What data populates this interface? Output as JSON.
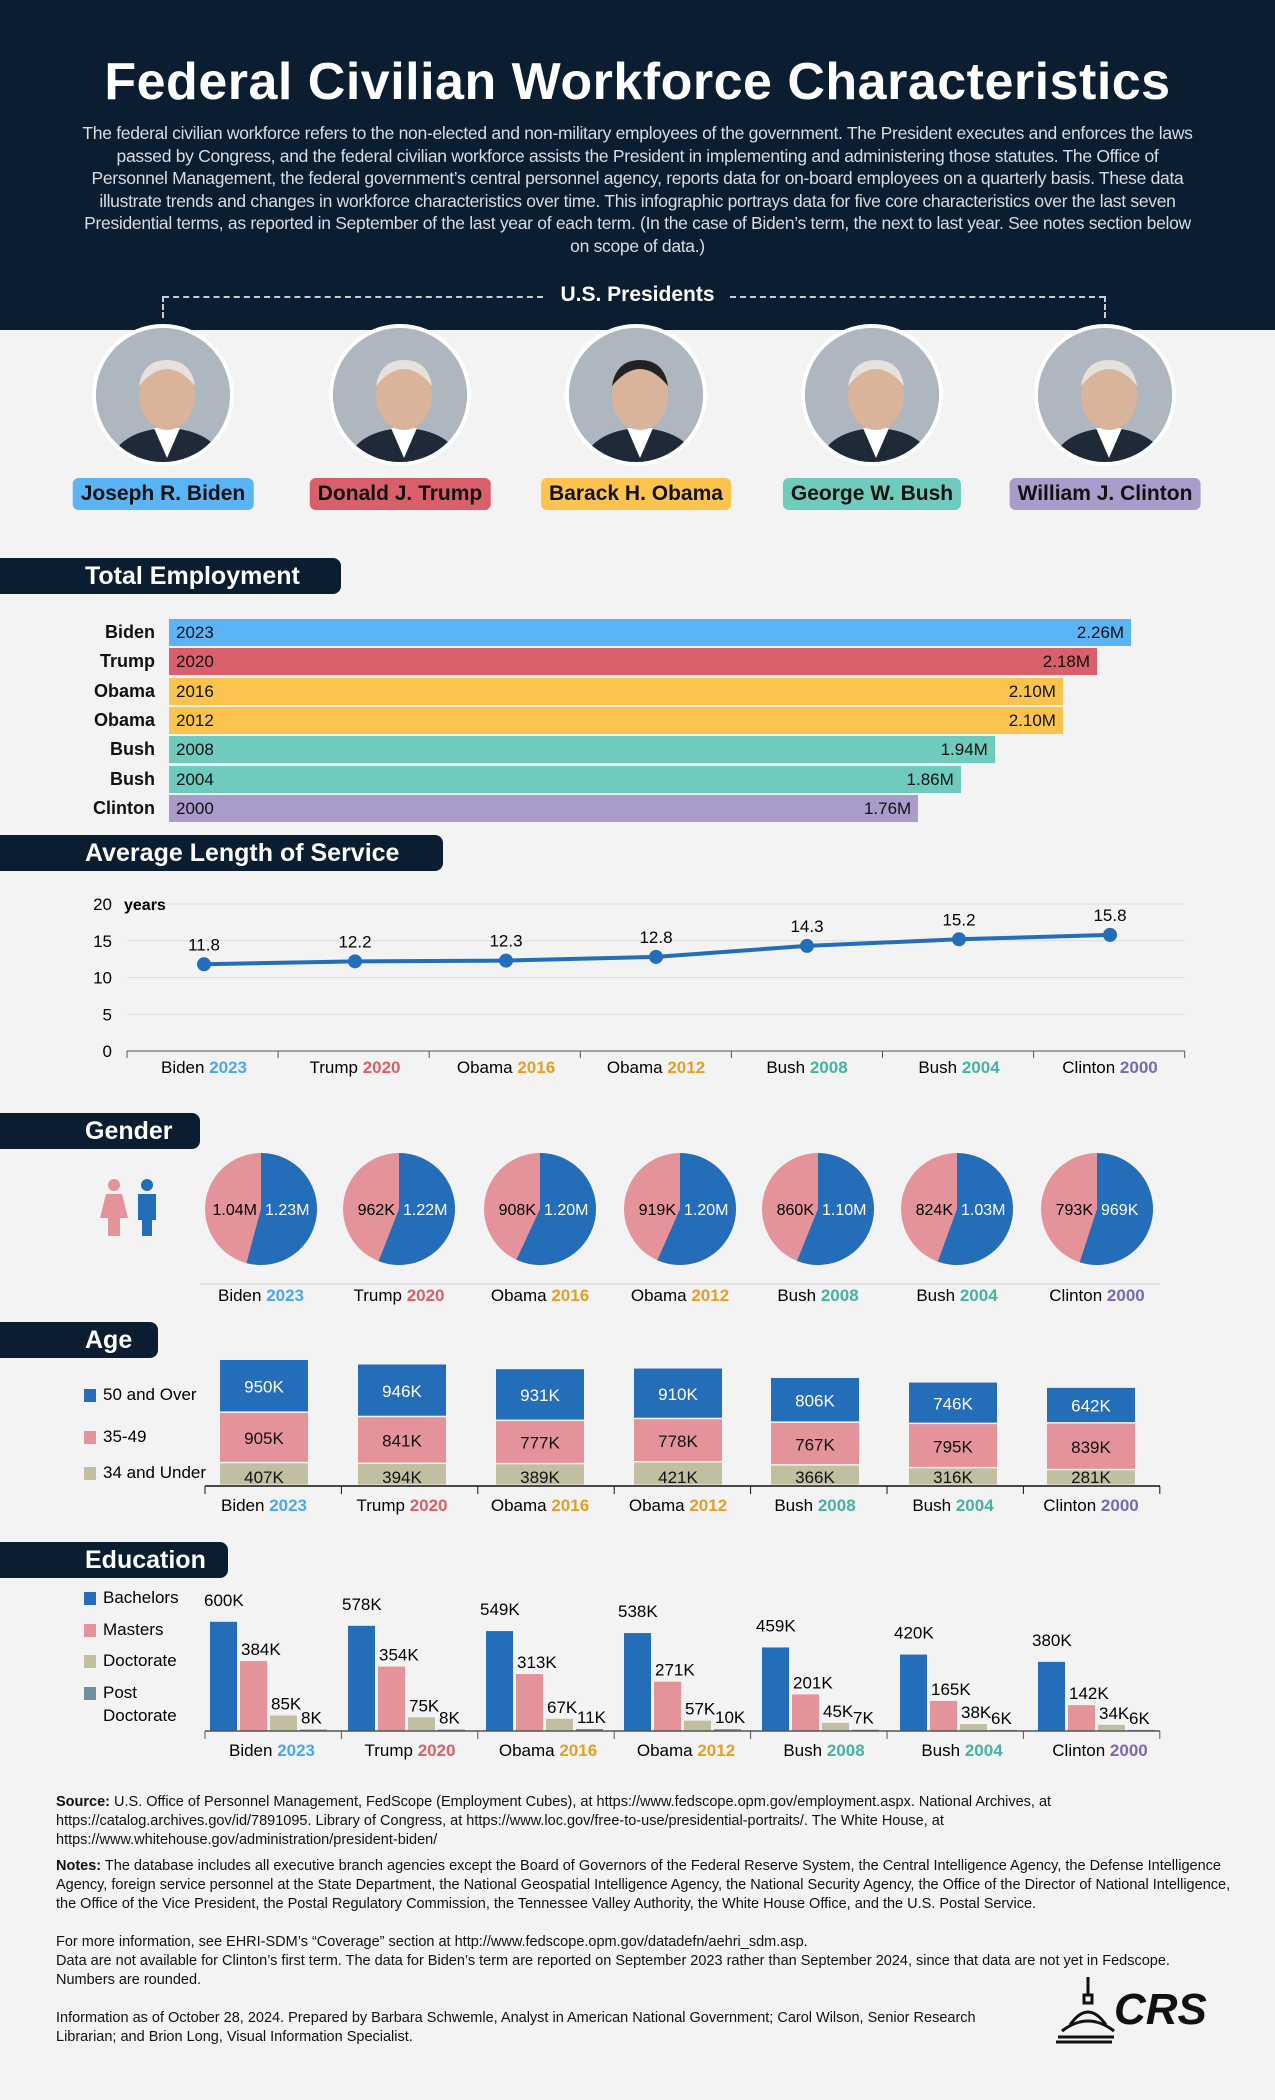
{
  "header": {
    "title": "Federal Civilian Workforce Characteristics",
    "intro": "The federal civilian workforce refers to the non-elected and non-military employees of the government. The President executes and enforces the laws passed by Congress, and the federal civilian workforce assists the President in implementing and administering those statutes. The Office of Personnel Management, the federal government’s central personnel agency, reports data for on-board employees on a quarterly basis. These data illustrate trends and changes in workforce characteristics over time. This infographic portrays data for five core characteristics over the last seven Presidential terms, as reported in September of the last year of each term. (In the case of Biden’s term, the next to last year. See notes section below on scope of data.)",
    "presidents_label": "U.S. Presidents"
  },
  "presidents": [
    {
      "name": "Joseph R. Biden",
      "color": "#5ab4f5"
    },
    {
      "name": "Donald J. Trump",
      "color": "#d9606a"
    },
    {
      "name": "Barack H. Obama",
      "color": "#fcc44f"
    },
    {
      "name": "George W. Bush",
      "color": "#6ecbbd"
    },
    {
      "name": "William J. Clinton",
      "color": "#a99ccb"
    }
  ],
  "terms": [
    {
      "president": "Biden",
      "year": "2023",
      "color": "#5ab4f5",
      "text_color": "#4aa8ee"
    },
    {
      "president": "Trump",
      "year": "2020",
      "color": "#d9606a",
      "text_color": "#d9606a"
    },
    {
      "president": "Obama",
      "year": "2016",
      "color": "#fcc44f",
      "text_color": "#e3a024"
    },
    {
      "president": "Obama",
      "year": "2012",
      "color": "#fcc44f",
      "text_color": "#e3a024"
    },
    {
      "president": "Bush",
      "year": "2008",
      "color": "#6ecbbd",
      "text_color": "#45b3a2"
    },
    {
      "president": "Bush",
      "year": "2004",
      "color": "#6ecbbd",
      "text_color": "#45b3a2"
    },
    {
      "president": "Clinton",
      "year": "2000",
      "color": "#a99ccb",
      "text_color": "#7a6aae"
    }
  ],
  "chart_data": [
    {
      "title": "Total Employment",
      "type": "bar",
      "orientation": "horizontal",
      "categories": [
        "Biden 2023",
        "Trump 2020",
        "Obama 2016",
        "Obama 2012",
        "Bush 2008",
        "Bush 2004",
        "Clinton 2000"
      ],
      "values": [
        2.26,
        2.18,
        2.1,
        2.1,
        1.94,
        1.86,
        1.76
      ],
      "labels": [
        "2.26M",
        "2.18M",
        "2.10M",
        "2.10M",
        "1.94M",
        "1.86M",
        "1.76M"
      ],
      "unit": "M"
    },
    {
      "title": "Average Length of Service",
      "type": "line",
      "categories": [
        "Biden 2023",
        "Trump 2020",
        "Obama 2016",
        "Obama 2012",
        "Bush 2008",
        "Bush 2004",
        "Clinton 2000"
      ],
      "values": [
        11.8,
        12.2,
        12.3,
        12.8,
        14.3,
        15.2,
        15.8
      ],
      "ylabel": "years",
      "ylim": [
        0,
        20
      ],
      "yticks": [
        0,
        5,
        10,
        15,
        20
      ],
      "grid": true,
      "color": "#246db8"
    },
    {
      "title": "Gender",
      "type": "pie",
      "categories": [
        "Biden 2023",
        "Trump 2020",
        "Obama 2016",
        "Obama 2012",
        "Bush 2008",
        "Bush 2004",
        "Clinton 2000"
      ],
      "series": [
        {
          "name": "female",
          "values": [
            1040,
            962,
            908,
            919,
            860,
            824,
            793
          ],
          "labels": [
            "1.04M",
            "962K",
            "908K",
            "919K",
            "860K",
            "824K",
            "793K"
          ],
          "color": "#e5939a"
        },
        {
          "name": "male",
          "values": [
            1230,
            1220,
            1200,
            1200,
            1100,
            1030,
            969
          ],
          "labels": [
            "1.23M",
            "1.22M",
            "1.20M",
            "1.20M",
            "1.10M",
            "1.03M",
            "969K"
          ],
          "color": "#246db8"
        }
      ]
    },
    {
      "title": "Age",
      "type": "bar",
      "stacked": true,
      "categories": [
        "Biden 2023",
        "Trump 2020",
        "Obama 2016",
        "Obama 2012",
        "Bush 2008",
        "Bush 2004",
        "Clinton 2000"
      ],
      "series": [
        {
          "name": "50 and Over",
          "values": [
            950,
            946,
            931,
            910,
            806,
            746,
            642
          ],
          "color": "#246db8"
        },
        {
          "name": "35-49",
          "values": [
            905,
            841,
            777,
            778,
            767,
            795,
            839
          ],
          "color": "#e5939a"
        },
        {
          "name": "34 and Under",
          "values": [
            407,
            394,
            389,
            421,
            366,
            316,
            281
          ],
          "color": "#c2bfa0"
        }
      ],
      "legend": "left"
    },
    {
      "title": "Education",
      "type": "bar",
      "stacked": false,
      "categories": [
        "Biden 2023",
        "Trump 2020",
        "Obama 2016",
        "Obama 2012",
        "Bush 2008",
        "Bush 2004",
        "Clinton 2000"
      ],
      "series": [
        {
          "name": "Bachelors",
          "values": [
            600,
            578,
            549,
            538,
            459,
            420,
            380
          ],
          "color": "#246db8"
        },
        {
          "name": "Masters",
          "values": [
            384,
            354,
            313,
            271,
            201,
            165,
            142
          ],
          "color": "#e5939a"
        },
        {
          "name": "Doctorate",
          "values": [
            85,
            75,
            67,
            57,
            45,
            38,
            34
          ],
          "color": "#c2bfa0"
        },
        {
          "name": "Post Doctorate",
          "values": [
            8,
            8,
            11,
            10,
            7,
            6,
            6
          ],
          "color": "#6d8fa0"
        }
      ],
      "legend": "left"
    }
  ],
  "footer": {
    "source_label": "Source:",
    "source": " U.S. Office of Personnel Management, FedScope (Employment Cubes), at https://www.fedscope.opm.gov/employment.aspx. National Archives, at https://catalog.archives.gov/id/7891095. Library of Congress, at https://www.loc.gov/free-to-use/presidential-portraits/. The White House, at https://www.whitehouse.gov/administration/president-biden/",
    "notes_label": "Notes:",
    "notes": " The database includes all executive branch agencies except the Board of Governors of the Federal Reserve System, the Central Intelligence Agency, the Defense Intelligence Agency, foreign service personnel at the State Department, the National Geospatial Intelligence Agency, the National Security Agency, the Office of the Director of National Intelligence, the Office of the Vice President, the Postal Regulatory Commission, the Tennessee Valley Authority, the White House Office, and the U.S. Postal Service.",
    "more_info": "For more information, see EHRI-SDM’s “Coverage” section at http://www.fedscope.opm.gov/datadefn/aehri_sdm.asp.",
    "availability": "Data are not available for Clinton’s first term.  The data for Biden’s term are reported on September 2023 rather than September 2024, since that data are not yet in Fedscope. Numbers are rounded.",
    "credits": "Information as of October 28, 2024. Prepared by Barbara Schwemle, Analyst in American National Government; Carol Wilson, Senior Research Librarian; and Brion Long, Visual Information Specialist.",
    "logo": "CRS"
  }
}
